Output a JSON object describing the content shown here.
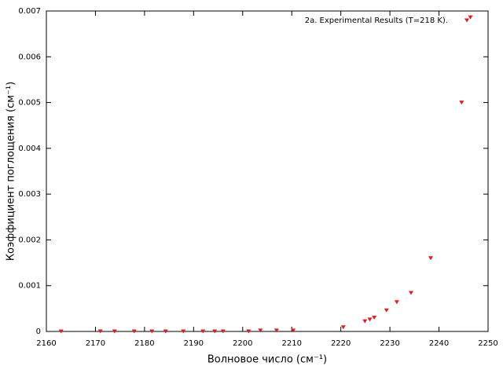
{
  "chart_data": {
    "type": "scatter",
    "x_label": "Волновое число (см⁻¹)",
    "y_label": "Коэффициент поглощения (см⁻¹)",
    "xlim": [
      2160,
      2250
    ],
    "xticks": [
      2160,
      2170,
      2180,
      2190,
      2200,
      2210,
      2220,
      2230,
      2240,
      2250
    ],
    "ylim": [
      0,
      0.007
    ],
    "yticks": [
      0,
      0.001,
      0.002,
      0.003,
      0.004,
      0.005,
      0.006,
      0.007
    ],
    "legend": "top-right",
    "series": [
      {
        "name": "2a. Experimental Results (T=218 K).",
        "color": "#e41a1c",
        "x": [
          2163.0,
          2171.0,
          2173.9,
          2177.9,
          2181.5,
          2184.3,
          2187.9,
          2191.9,
          2194.3,
          2196.0,
          2201.2,
          2203.6,
          2206.9,
          2210.3,
          2220.5,
          2224.9,
          2225.9,
          2226.8,
          2229.3,
          2231.4,
          2234.3,
          2238.3,
          2244.6,
          2246.4
        ],
        "values": [
          0,
          0,
          0,
          0,
          0,
          0,
          0,
          0,
          0,
          0,
          0,
          2e-05,
          2e-05,
          2e-05,
          9e-05,
          0.00022,
          0.00026,
          0.0003,
          0.00046,
          0.00064,
          0.00084,
          0.0016,
          0.005,
          0.00686
        ]
      }
    ]
  }
}
